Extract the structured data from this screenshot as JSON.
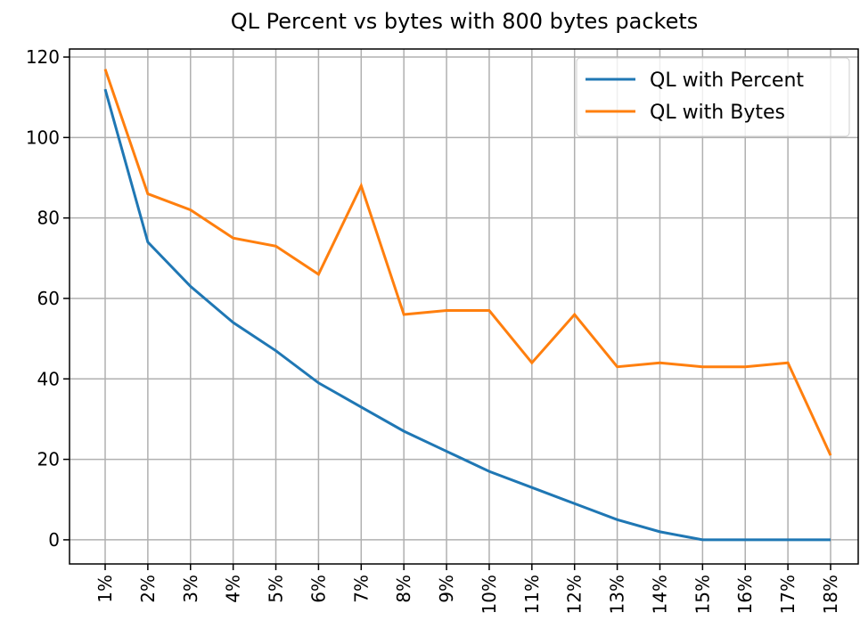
{
  "chart_data": {
    "type": "line",
    "title": "QL Percent vs bytes with 800 bytes packets",
    "categories": [
      "1%",
      "2%",
      "3%",
      "4%",
      "5%",
      "6%",
      "7%",
      "8%",
      "9%",
      "10%",
      "11%",
      "12%",
      "13%",
      "14%",
      "15%",
      "16%",
      "17%",
      "18%"
    ],
    "series": [
      {
        "name": "QL with Percent",
        "color": "#1f77b4",
        "values": [
          112,
          74,
          63,
          54,
          47,
          39,
          33,
          27,
          22,
          17,
          13,
          9,
          5,
          2,
          0,
          0,
          0,
          0
        ]
      },
      {
        "name": "QL with Bytes",
        "color": "#ff7f0e",
        "values": [
          117,
          86,
          82,
          75,
          73,
          66,
          88,
          56,
          57,
          57,
          44,
          56,
          43,
          44,
          43,
          43,
          44,
          21
        ]
      }
    ],
    "ylim": [
      -6,
      122
    ],
    "yticks": [
      0,
      20,
      40,
      60,
      80,
      100,
      120
    ],
    "grid": true,
    "legend": "upper right"
  }
}
